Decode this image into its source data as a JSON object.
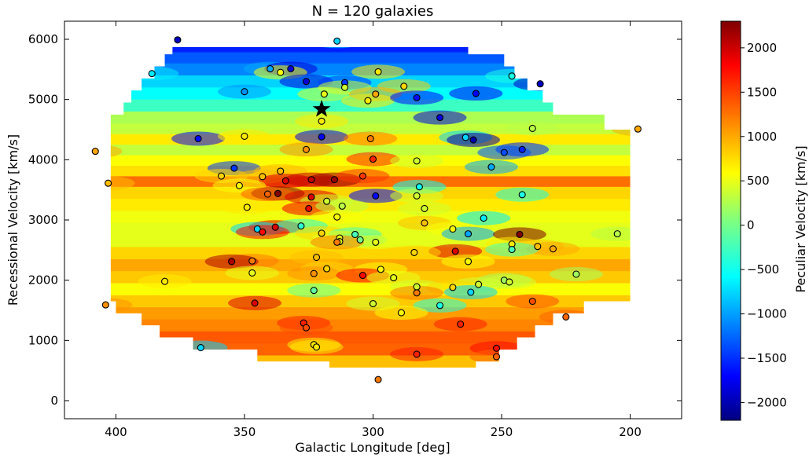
{
  "chart_data": {
    "type": "scatter",
    "title": "N = 120 galaxies",
    "xlabel": "Galactic Longitude [deg]",
    "ylabel": "Recessional Velocity [km/s]",
    "colorbar_label": "Peculiar Velocity [km/s]",
    "xlim": [
      420,
      180
    ],
    "ylim": [
      -300,
      6300
    ],
    "x_reversed": true,
    "x_ticks": [
      400,
      350,
      300,
      250,
      200
    ],
    "x_tick_labels": [
      "400",
      "350",
      "300",
      "250",
      "200"
    ],
    "y_ticks": [
      0,
      1000,
      2000,
      3000,
      4000,
      5000,
      6000
    ],
    "y_tick_labels": [
      "0",
      "1000",
      "2000",
      "3000",
      "4000",
      "5000",
      "6000"
    ],
    "clim": [
      -2200,
      2300
    ],
    "colorbar_ticks": [
      2000,
      1500,
      1000,
      500,
      0,
      -500,
      -1000,
      -1500,
      -2000
    ],
    "colorbar_tick_labels": [
      "2000",
      "1500",
      "1000",
      "500",
      "0",
      "−1000",
      "−1500",
      "−2000"
    ],
    "colorbar_tick_labels_all": [
      "2000",
      "1500",
      "1000",
      "500",
      "0",
      "−500",
      "−1000",
      "−1500",
      "−2000"
    ],
    "colormap": "jet",
    "grid": false,
    "background_field": "interpolated peculiar velocity (filled contour)",
    "marker_star": {
      "x": 320,
      "y": 4840
    },
    "points": [
      {
        "x": 376,
        "y": 5990,
        "v": -1900
      },
      {
        "x": 314,
        "y": 5970,
        "v": -700
      },
      {
        "x": 386,
        "y": 5430,
        "v": -600
      },
      {
        "x": 340,
        "y": 5510,
        "v": -900
      },
      {
        "x": 332,
        "y": 5510,
        "v": -1800
      },
      {
        "x": 336,
        "y": 5450,
        "v": 600
      },
      {
        "x": 298,
        "y": 5460,
        "v": 700
      },
      {
        "x": 246,
        "y": 5390,
        "v": -400
      },
      {
        "x": 235,
        "y": 5260,
        "v": -1900
      },
      {
        "x": 326,
        "y": 5300,
        "v": -1800
      },
      {
        "x": 311,
        "y": 5280,
        "v": -1400
      },
      {
        "x": 288,
        "y": 5220,
        "v": 800
      },
      {
        "x": 350,
        "y": 5130,
        "v": -1000
      },
      {
        "x": 311,
        "y": 5200,
        "v": 400
      },
      {
        "x": 319,
        "y": 5090,
        "v": 500
      },
      {
        "x": 299,
        "y": 5090,
        "v": 1000
      },
      {
        "x": 260,
        "y": 5100,
        "v": -1700
      },
      {
        "x": 302,
        "y": 4980,
        "v": 700
      },
      {
        "x": 283,
        "y": 5030,
        "v": -1600
      },
      {
        "x": 320,
        "y": 4640,
        "v": 700
      },
      {
        "x": 274,
        "y": 4700,
        "v": -1800
      },
      {
        "x": 238,
        "y": 4520,
        "v": 300
      },
      {
        "x": 197,
        "y": 4510,
        "v": 1000
      },
      {
        "x": 368,
        "y": 4350,
        "v": -1600
      },
      {
        "x": 350,
        "y": 4390,
        "v": 700
      },
      {
        "x": 320,
        "y": 4380,
        "v": -1700
      },
      {
        "x": 301,
        "y": 4350,
        "v": 1200
      },
      {
        "x": 264,
        "y": 4370,
        "v": -700
      },
      {
        "x": 261,
        "y": 4330,
        "v": -2000
      },
      {
        "x": 408,
        "y": 4140,
        "v": 1000
      },
      {
        "x": 326,
        "y": 4170,
        "v": 1100
      },
      {
        "x": 242,
        "y": 4170,
        "v": -1500
      },
      {
        "x": 249,
        "y": 4120,
        "v": -1300
      },
      {
        "x": 300,
        "y": 4010,
        "v": 1600
      },
      {
        "x": 283,
        "y": 3980,
        "v": 400
      },
      {
        "x": 354,
        "y": 3860,
        "v": -1400
      },
      {
        "x": 254,
        "y": 3880,
        "v": -900
      },
      {
        "x": 336,
        "y": 3810,
        "v": 900
      },
      {
        "x": 359,
        "y": 3730,
        "v": 800
      },
      {
        "x": 343,
        "y": 3720,
        "v": 900
      },
      {
        "x": 334,
        "y": 3650,
        "v": 1900
      },
      {
        "x": 324,
        "y": 3670,
        "v": 2000
      },
      {
        "x": 315,
        "y": 3670,
        "v": 2200
      },
      {
        "x": 304,
        "y": 3730,
        "v": 1500
      },
      {
        "x": 403,
        "y": 3610,
        "v": 900
      },
      {
        "x": 352,
        "y": 3570,
        "v": 600
      },
      {
        "x": 282,
        "y": 3550,
        "v": -500
      },
      {
        "x": 337,
        "y": 3440,
        "v": 2300
      },
      {
        "x": 341,
        "y": 3430,
        "v": 1300
      },
      {
        "x": 324,
        "y": 3380,
        "v": 1900
      },
      {
        "x": 299,
        "y": 3400,
        "v": -1600
      },
      {
        "x": 283,
        "y": 3400,
        "v": 400
      },
      {
        "x": 242,
        "y": 3420,
        "v": -400
      },
      {
        "x": 318,
        "y": 3310,
        "v": 400
      },
      {
        "x": 349,
        "y": 3210,
        "v": 700
      },
      {
        "x": 325,
        "y": 3190,
        "v": 1800
      },
      {
        "x": 312,
        "y": 3230,
        "v": 300
      },
      {
        "x": 280,
        "y": 3190,
        "v": 400
      },
      {
        "x": 257,
        "y": 3030,
        "v": -600
      },
      {
        "x": 314,
        "y": 3050,
        "v": 600
      },
      {
        "x": 280,
        "y": 2950,
        "v": 900
      },
      {
        "x": 338,
        "y": 2880,
        "v": 1900
      },
      {
        "x": 328,
        "y": 2900,
        "v": -300
      },
      {
        "x": 345,
        "y": 2850,
        "v": -700
      },
      {
        "x": 343,
        "y": 2800,
        "v": 1700
      },
      {
        "x": 269,
        "y": 2850,
        "v": 600
      },
      {
        "x": 320,
        "y": 2780,
        "v": 800
      },
      {
        "x": 307,
        "y": 2760,
        "v": -200
      },
      {
        "x": 263,
        "y": 2770,
        "v": -900
      },
      {
        "x": 243,
        "y": 2760,
        "v": 2300
      },
      {
        "x": 205,
        "y": 2770,
        "v": 300
      },
      {
        "x": 313,
        "y": 2700,
        "v": 500
      },
      {
        "x": 313,
        "y": 2640,
        "v": 500
      },
      {
        "x": 305,
        "y": 2670,
        "v": 0
      },
      {
        "x": 299,
        "y": 2630,
        "v": 500
      },
      {
        "x": 314,
        "y": 2630,
        "v": 1200
      },
      {
        "x": 246,
        "y": 2600,
        "v": 700
      },
      {
        "x": 236,
        "y": 2560,
        "v": 900
      },
      {
        "x": 230,
        "y": 2520,
        "v": 1000
      },
      {
        "x": 246,
        "y": 2510,
        "v": -200
      },
      {
        "x": 268,
        "y": 2480,
        "v": 1900
      },
      {
        "x": 284,
        "y": 2460,
        "v": 800
      },
      {
        "x": 322,
        "y": 2380,
        "v": 900
      },
      {
        "x": 347,
        "y": 2320,
        "v": 1200
      },
      {
        "x": 355,
        "y": 2310,
        "v": 2100
      },
      {
        "x": 263,
        "y": 2310,
        "v": 600
      },
      {
        "x": 318,
        "y": 2190,
        "v": 800
      },
      {
        "x": 297,
        "y": 2180,
        "v": 600
      },
      {
        "x": 221,
        "y": 2100,
        "v": 200
      },
      {
        "x": 347,
        "y": 2120,
        "v": 500
      },
      {
        "x": 323,
        "y": 2110,
        "v": 1100
      },
      {
        "x": 304,
        "y": 2080,
        "v": 1700
      },
      {
        "x": 292,
        "y": 2040,
        "v": 500
      },
      {
        "x": 381,
        "y": 1980,
        "v": 700
      },
      {
        "x": 249,
        "y": 2000,
        "v": 200
      },
      {
        "x": 247,
        "y": 1970,
        "v": 400
      },
      {
        "x": 259,
        "y": 1930,
        "v": 400
      },
      {
        "x": 283,
        "y": 1890,
        "v": 400
      },
      {
        "x": 269,
        "y": 1880,
        "v": 800
      },
      {
        "x": 323,
        "y": 1830,
        "v": -100
      },
      {
        "x": 262,
        "y": 1800,
        "v": -700
      },
      {
        "x": 283,
        "y": 1790,
        "v": 1200
      },
      {
        "x": 238,
        "y": 1650,
        "v": 1400
      },
      {
        "x": 346,
        "y": 1620,
        "v": 1900
      },
      {
        "x": 300,
        "y": 1610,
        "v": 400
      },
      {
        "x": 274,
        "y": 1580,
        "v": -400
      },
      {
        "x": 404,
        "y": 1590,
        "v": 1100
      },
      {
        "x": 289,
        "y": 1460,
        "v": 600
      },
      {
        "x": 225,
        "y": 1390,
        "v": 1300
      },
      {
        "x": 327,
        "y": 1290,
        "v": 1600
      },
      {
        "x": 266,
        "y": 1270,
        "v": 1600
      },
      {
        "x": 326,
        "y": 1210,
        "v": 1400
      },
      {
        "x": 323,
        "y": 930,
        "v": 700
      },
      {
        "x": 322,
        "y": 890,
        "v": 700
      },
      {
        "x": 367,
        "y": 880,
        "v": -700
      },
      {
        "x": 252,
        "y": 870,
        "v": 1700
      },
      {
        "x": 283,
        "y": 770,
        "v": 1600
      },
      {
        "x": 252,
        "y": 730,
        "v": 1300
      },
      {
        "x": 298,
        "y": 350,
        "v": 1200
      }
    ],
    "field_bands": [
      {
        "y": 5870,
        "v": -1500
      },
      {
        "y": 5700,
        "v": -1250
      },
      {
        "y": 5500,
        "v": -1050
      },
      {
        "y": 5300,
        "v": -700
      },
      {
        "y": 5100,
        "v": -500
      },
      {
        "y": 4900,
        "v": -250
      },
      {
        "y": 4700,
        "v": 250
      },
      {
        "y": 4500,
        "v": 350
      },
      {
        "y": 4350,
        "v": 700
      },
      {
        "y": 4150,
        "v": 350
      },
      {
        "y": 4000,
        "v": 600
      },
      {
        "y": 3800,
        "v": 750
      },
      {
        "y": 3650,
        "v": 1250
      },
      {
        "y": 3450,
        "v": 800
      },
      {
        "y": 3250,
        "v": 700
      },
      {
        "y": 3050,
        "v": 550
      },
      {
        "y": 2850,
        "v": 500
      },
      {
        "y": 2650,
        "v": 500
      },
      {
        "y": 2450,
        "v": 800
      },
      {
        "y": 2250,
        "v": 1000
      },
      {
        "y": 2050,
        "v": 850
      },
      {
        "y": 1850,
        "v": 600
      },
      {
        "y": 1650,
        "v": 850
      },
      {
        "y": 1450,
        "v": 1050
      },
      {
        "y": 1250,
        "v": 1150
      },
      {
        "y": 1050,
        "v": 1350
      },
      {
        "y": 850,
        "v": 1300
      },
      {
        "y": 650,
        "v": 900
      }
    ],
    "field_rows": [
      {
        "y0": 5750,
        "y1": 5870,
        "x0": 378,
        "x1": 263
      },
      {
        "y0": 5550,
        "y1": 5750,
        "x0": 381,
        "x1": 249
      },
      {
        "y0": 5350,
        "y1": 5550,
        "x0": 385,
        "x1": 245
      },
      {
        "y0": 5150,
        "y1": 5350,
        "x0": 390,
        "x1": 240
      },
      {
        "y0": 4950,
        "y1": 5150,
        "x0": 394,
        "x1": 234
      },
      {
        "y0": 4750,
        "y1": 4950,
        "x0": 397,
        "x1": 230
      },
      {
        "y0": 4500,
        "y1": 4750,
        "x0": 402,
        "x1": 210
      },
      {
        "y0": 1650,
        "y1": 4500,
        "x0": 402,
        "x1": 200
      },
      {
        "y0": 1450,
        "y1": 1650,
        "x0": 400,
        "x1": 218
      },
      {
        "y0": 1250,
        "y1": 1450,
        "x0": 390,
        "x1": 230
      },
      {
        "y0": 1050,
        "y1": 1250,
        "x0": 383,
        "x1": 237
      },
      {
        "y0": 850,
        "y1": 1050,
        "x0": 370,
        "x1": 244
      },
      {
        "y0": 650,
        "y1": 850,
        "x0": 345,
        "x1": 251
      },
      {
        "y0": 550,
        "y1": 650,
        "x0": 317,
        "x1": 260
      }
    ]
  }
}
